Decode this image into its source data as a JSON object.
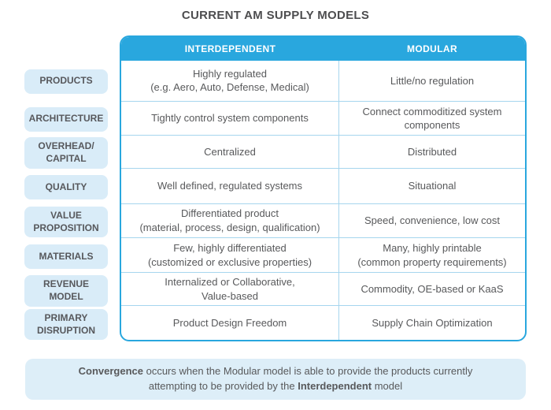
{
  "title": "CURRENT AM SUPPLY MODELS",
  "colors": {
    "accent_blue": "#29a7de",
    "pill_fill": "#d9ecf8",
    "note_fill": "#ddeef8",
    "grid_line": "#a6d6ee",
    "text_gray": "#58595b"
  },
  "table": {
    "columns": [
      {
        "label": "INTERDEPENDENT"
      },
      {
        "label": "MODULAR"
      }
    ],
    "rows": [
      {
        "label": "PRODUCTS",
        "interdependent": "Highly regulated\n(e.g. Aero, Auto, Defense, Medical)",
        "modular": "Little/no regulation"
      },
      {
        "label": "ARCHITECTURE",
        "interdependent": "Tightly control system components",
        "modular": "Connect commoditized system\ncomponents"
      },
      {
        "label": "OVERHEAD/\nCAPITAL",
        "interdependent": "Centralized",
        "modular": "Distributed"
      },
      {
        "label": "QUALITY",
        "interdependent": "Well defined, regulated systems",
        "modular": "Situational"
      },
      {
        "label": "VALUE\nPROPOSITION",
        "interdependent": "Differentiated product\n(material, process, design, qualification)",
        "modular": "Speed, convenience, low cost"
      },
      {
        "label": "MATERIALS",
        "interdependent": "Few, highly differentiated\n(customized or exclusive properties)",
        "modular": "Many, highly printable\n(common property requirements)"
      },
      {
        "label": "REVENUE\nMODEL",
        "interdependent": "Internalized or Collaborative,\nValue-based",
        "modular": "Commodity, OE-based or KaaS"
      },
      {
        "label": "PRIMARY\nDISRUPTION",
        "interdependent": "Product Design Freedom",
        "modular": "Supply Chain Optimization"
      }
    ]
  },
  "note": {
    "line1_bold": "Convergence",
    "line1_rest": " occurs when the Modular model is able to provide the products currently",
    "line2_pre": "attempting to be provided by the ",
    "line2_bold": "Interdependent",
    "line2_post": " model"
  }
}
